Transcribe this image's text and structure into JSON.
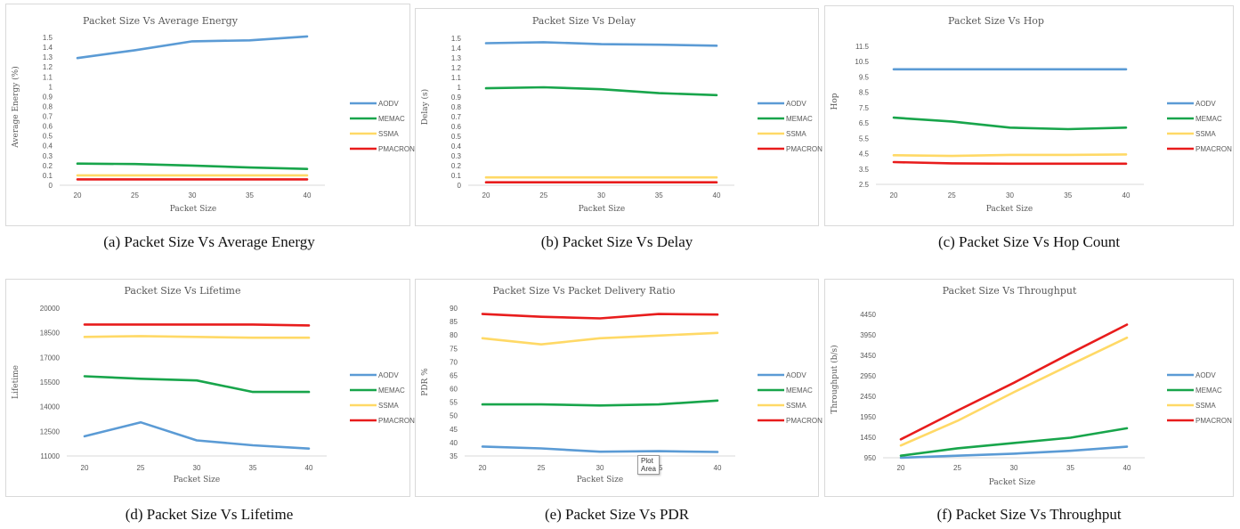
{
  "series_colors": {
    "AODV": "#5B9BD5",
    "MEMAC": "#18A54B",
    "SSMA": "#FFD966",
    "PMACRON": "#E81C1C"
  },
  "tooltip": "Plot Area",
  "chart_data": [
    {
      "type": "line",
      "title": "Packet Size Vs Average Energy",
      "caption": "(a) Packet Size Vs Average Energy",
      "xlabel": "Packet Size",
      "ylabel": "Average Energy (%)",
      "x": [
        20,
        25,
        30,
        35,
        40
      ],
      "x_ticks": [
        "20",
        "25",
        "30",
        "35",
        "40"
      ],
      "ylim": [
        0,
        1.5
      ],
      "y_ticks": [
        "0",
        "0.1",
        "0.2",
        "0.3",
        "0.4",
        "0.5",
        "0.6",
        "0.7",
        "0.8",
        "0.9",
        "1",
        "1.1",
        "1.2",
        "1.3",
        "1.4",
        "1.5"
      ],
      "grid": false,
      "legend": "right",
      "series": [
        {
          "name": "AODV",
          "values": [
            1.29,
            1.37,
            1.46,
            1.47,
            1.51
          ]
        },
        {
          "name": "MEMAC",
          "values": [
            0.22,
            0.215,
            0.2,
            0.18,
            0.165
          ]
        },
        {
          "name": "SSMA",
          "values": [
            0.1,
            0.1,
            0.1,
            0.1,
            0.1
          ]
        },
        {
          "name": "PMACRON",
          "values": [
            0.06,
            0.06,
            0.06,
            0.06,
            0.06
          ]
        }
      ]
    },
    {
      "type": "line",
      "title": "Packet Size Vs Delay",
      "caption": "(b) Packet Size Vs Delay",
      "xlabel": "Packet Size",
      "ylabel": "Delay (s)",
      "x": [
        20,
        25,
        30,
        35,
        40
      ],
      "x_ticks": [
        "20",
        "25",
        "30",
        "35",
        "40"
      ],
      "ylim": [
        0,
        1.5
      ],
      "y_ticks": [
        "0",
        "0.1",
        "0.2",
        "0.3",
        "0.4",
        "0.5",
        "0.6",
        "0.7",
        "0.8",
        "0.9",
        "1",
        "1.1",
        "1.2",
        "1.3",
        "1.4",
        "1.5"
      ],
      "grid": false,
      "legend": "right",
      "series": [
        {
          "name": "AODV",
          "values": [
            1.45,
            1.46,
            1.44,
            1.435,
            1.425
          ]
        },
        {
          "name": "MEMAC",
          "values": [
            0.99,
            1.0,
            0.98,
            0.94,
            0.92
          ]
        },
        {
          "name": "SSMA",
          "values": [
            0.08,
            0.08,
            0.08,
            0.08,
            0.08
          ]
        },
        {
          "name": "PMACRON",
          "values": [
            0.03,
            0.03,
            0.03,
            0.03,
            0.03
          ]
        }
      ]
    },
    {
      "type": "line",
      "title": "Packet Size Vs Hop",
      "caption": "(c) Packet Size Vs Hop Count",
      "xlabel": "Packet Size",
      "ylabel": "Hop",
      "x": [
        20,
        25,
        30,
        35,
        40
      ],
      "x_ticks": [
        "20",
        "25",
        "30",
        "35",
        "40"
      ],
      "ylim": [
        2.5,
        11.5
      ],
      "y_ticks": [
        "2.5",
        "3.5",
        "4.5",
        "5.5",
        "6.5",
        "7.5",
        "8.5",
        "9.5",
        "10.5",
        "11.5"
      ],
      "grid": false,
      "legend": "right",
      "series": [
        {
          "name": "AODV",
          "values": [
            10,
            10,
            10,
            10,
            10
          ]
        },
        {
          "name": "MEMAC",
          "values": [
            6.85,
            6.6,
            6.2,
            6.1,
            6.2
          ]
        },
        {
          "name": "SSMA",
          "values": [
            4.4,
            4.35,
            4.42,
            4.42,
            4.45
          ]
        },
        {
          "name": "PMACRON",
          "values": [
            3.95,
            3.87,
            3.85,
            3.85,
            3.85
          ]
        }
      ]
    },
    {
      "type": "line",
      "title": "Packet Size Vs Lifetime",
      "caption": "(d) Packet Size Vs Lifetime",
      "xlabel": "Packet Size",
      "ylabel": "Lifetime",
      "x": [
        20,
        25,
        30,
        35,
        40
      ],
      "x_ticks": [
        "20",
        "25",
        "30",
        "35",
        "40"
      ],
      "ylim": [
        11000,
        20000
      ],
      "y_ticks": [
        "11000",
        "12500",
        "14000",
        "15500",
        "17000",
        "18500",
        "20000"
      ],
      "grid": false,
      "legend": "right",
      "series": [
        {
          "name": "AODV",
          "values": [
            12200,
            13050,
            11950,
            11650,
            11450
          ]
        },
        {
          "name": "MEMAC",
          "values": [
            15850,
            15700,
            15600,
            14900,
            14900
          ]
        },
        {
          "name": "SSMA",
          "values": [
            18250,
            18300,
            18250,
            18200,
            18200
          ]
        },
        {
          "name": "PMACRON",
          "values": [
            19000,
            19000,
            19000,
            19000,
            18950
          ]
        }
      ]
    },
    {
      "type": "line",
      "title": "Packet Size Vs Packet Delivery Ratio",
      "caption": "(e) Packet Size Vs PDR",
      "xlabel": "Packet Size",
      "ylabel": "PDR %",
      "x": [
        20,
        25,
        30,
        35,
        40
      ],
      "x_ticks": [
        "20",
        "25",
        "30",
        "35",
        "40"
      ],
      "ylim": [
        35,
        90
      ],
      "y_ticks": [
        "35",
        "40",
        "45",
        "50",
        "55",
        "60",
        "65",
        "70",
        "75",
        "80",
        "85",
        "90"
      ],
      "grid": false,
      "legend": "right",
      "series": [
        {
          "name": "AODV",
          "values": [
            38.5,
            37.8,
            36.6,
            36.8,
            36.5
          ]
        },
        {
          "name": "MEMAC",
          "values": [
            54.2,
            54.2,
            53.8,
            54.2,
            55.6
          ]
        },
        {
          "name": "SSMA",
          "values": [
            78.8,
            76.5,
            78.8,
            79.8,
            80.8
          ]
        },
        {
          "name": "PMACRON",
          "values": [
            87.8,
            86.8,
            86.2,
            87.8,
            87.6
          ]
        }
      ]
    },
    {
      "type": "line",
      "title": "Packet Size Vs Throughput",
      "caption": "(f) Packet Size Vs Throughput",
      "xlabel": "Packet Size",
      "ylabel": "Throughput (b/s)",
      "x": [
        20,
        25,
        30,
        35,
        40
      ],
      "x_ticks": [
        "20",
        "25",
        "30",
        "35",
        "40"
      ],
      "ylim": [
        950,
        4450
      ],
      "y_ticks": [
        "950",
        "1450",
        "1950",
        "2450",
        "2950",
        "3450",
        "3950",
        "4450"
      ],
      "grid": false,
      "legend": "right",
      "series": [
        {
          "name": "AODV",
          "values": [
            950,
            1000,
            1050,
            1120,
            1220
          ]
        },
        {
          "name": "MEMAC",
          "values": [
            1000,
            1180,
            1310,
            1440,
            1670
          ]
        },
        {
          "name": "SSMA",
          "values": [
            1250,
            1850,
            2550,
            3220,
            3880
          ]
        },
        {
          "name": "PMACRON",
          "values": [
            1400,
            2100,
            2780,
            3500,
            4200
          ]
        }
      ]
    }
  ]
}
